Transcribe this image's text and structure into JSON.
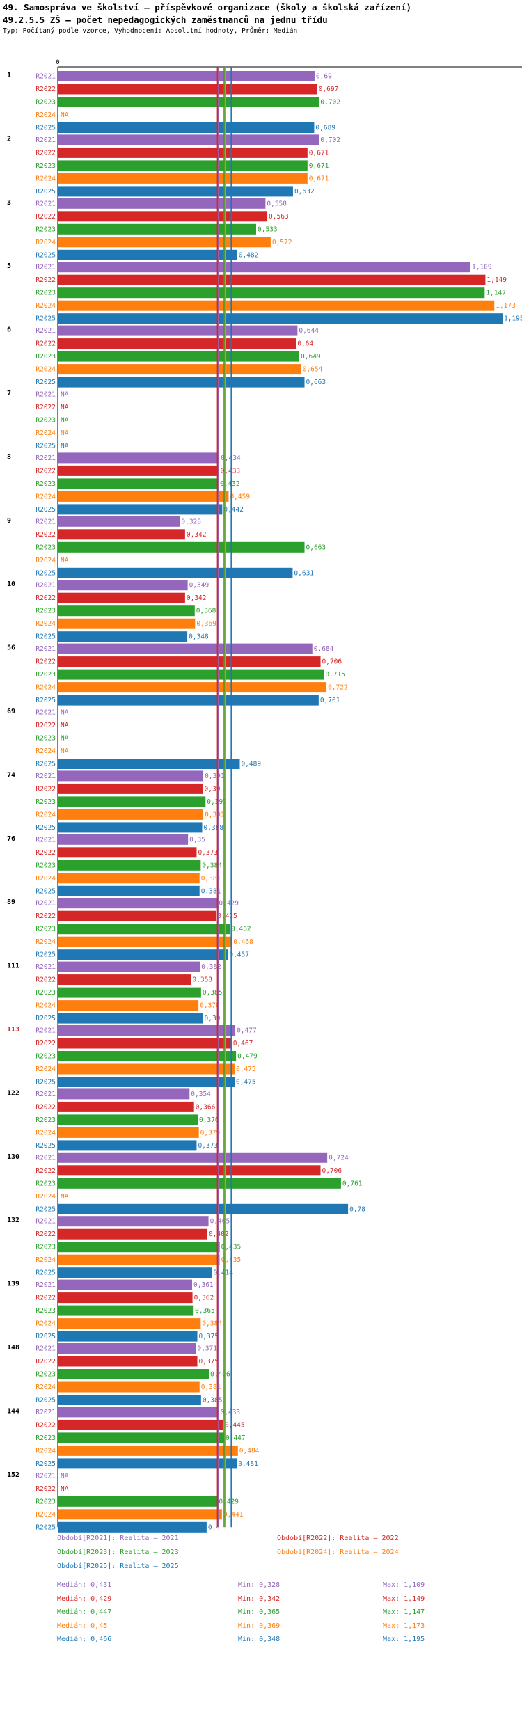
{
  "chart_data": {
    "type": "bar",
    "orientation": "horizontal",
    "title": "49. Samospráva ve školství – příspěvkové organizace (školy a školská zařízení)",
    "subtitle": "49.2.5.5 ZŠ – počet nepedagogických zaměstnanců na jednu třídu",
    "description": "Typ: Počítaný podle vzorce, Vyhodnocení: Absolutní hodnoty, Průměr: Medián",
    "axis_zero_label": "0",
    "xlim": [
      0,
      1.195
    ],
    "highlight_category": "113",
    "series_labels": [
      "R2021",
      "R2022",
      "R2023",
      "R2024",
      "R2025"
    ],
    "categories": [
      "1",
      "2",
      "3",
      "5",
      "6",
      "7",
      "8",
      "9",
      "10",
      "56",
      "69",
      "74",
      "76",
      "89",
      "111",
      "113",
      "122",
      "130",
      "132",
      "139",
      "148",
      "144",
      "152"
    ],
    "series": [
      {
        "name": "R2021",
        "color": "#9467bd",
        "values": [
          0.69,
          0.702,
          0.558,
          1.109,
          0.644,
          null,
          0.434,
          0.328,
          0.349,
          0.684,
          null,
          0.391,
          0.35,
          0.429,
          0.382,
          0.477,
          0.354,
          0.724,
          0.405,
          0.361,
          0.371,
          0.433,
          null
        ]
      },
      {
        "name": "R2022",
        "color": "#d62728",
        "values": [
          0.697,
          0.671,
          0.563,
          1.149,
          0.64,
          null,
          0.433,
          0.342,
          0.342,
          0.706,
          null,
          0.39,
          0.373,
          0.425,
          0.358,
          0.467,
          0.366,
          0.706,
          0.402,
          0.362,
          0.375,
          0.445,
          null
        ]
      },
      {
        "name": "R2023",
        "color": "#2ca02c",
        "values": [
          0.702,
          0.671,
          0.533,
          1.147,
          0.649,
          null,
          0.432,
          0.663,
          0.368,
          0.715,
          null,
          0.397,
          0.384,
          0.462,
          0.385,
          0.479,
          0.376,
          0.761,
          0.435,
          0.365,
          0.406,
          0.447,
          0.429
        ]
      },
      {
        "name": "R2024",
        "color": "#ff7f0e",
        "values": [
          null,
          0.671,
          0.572,
          1.173,
          0.654,
          null,
          0.459,
          null,
          0.369,
          0.722,
          null,
          0.391,
          0.381,
          0.468,
          0.378,
          0.475,
          0.379,
          null,
          0.435,
          0.384,
          0.381,
          0.484,
          0.441
        ]
      },
      {
        "name": "R2025",
        "color": "#1f77b4",
        "values": [
          0.689,
          0.632,
          0.482,
          1.195,
          0.663,
          null,
          0.442,
          0.631,
          0.348,
          0.701,
          0.489,
          0.388,
          0.381,
          0.457,
          0.39,
          0.475,
          0.373,
          0.78,
          0.414,
          0.375,
          0.385,
          0.481,
          0.4
        ]
      }
    ],
    "na_label": "NA",
    "median_lines": [
      0.431,
      0.429,
      0.447,
      0.45,
      0.466
    ]
  },
  "legend": {
    "periods": [
      "Období[R2021]: Realita – 2021",
      "Období[R2022]: Realita – 2022",
      "Období[R2023]: Realita – 2023",
      "Období[R2024]: Realita – 2024",
      "Období[R2025]: Realita – 2025"
    ],
    "stats": [
      {
        "median": "Medián: 0,431",
        "min": "Min: 0,328",
        "max": "Max: 1,109"
      },
      {
        "median": "Medián: 0,429",
        "min": "Min: 0,342",
        "max": "Max: 1,149"
      },
      {
        "median": "Medián: 0,447",
        "min": "Min: 0,365",
        "max": "Max: 1,147"
      },
      {
        "median": "Medián: 0,45",
        "min": "Min: 0,369",
        "max": "Max: 1,173"
      },
      {
        "median": "Medián: 0,466",
        "min": "Min: 0,348",
        "max": "Max: 1,195"
      }
    ]
  }
}
